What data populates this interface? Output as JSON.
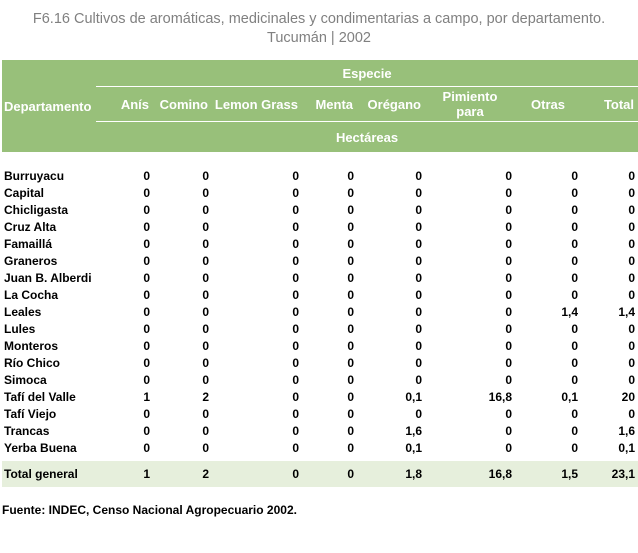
{
  "title": {
    "line1": "F6.16 Cultivos de aromáticas, medicinales y condimentarias a campo, por departamento.",
    "line2": "Tucumán | 2002"
  },
  "header": {
    "departamento": "Departamento",
    "especie": "Especie",
    "hectareas": "Hectáreas",
    "columns": [
      "Anís",
      "Comino",
      "Lemon Grass",
      "Menta",
      "Orégano",
      "Pimiento para",
      "Otras",
      "Total"
    ]
  },
  "rows": [
    {
      "name": "Burruyacu",
      "values": [
        "0",
        "0",
        "0",
        "0",
        "0",
        "0",
        "0",
        "0"
      ]
    },
    {
      "name": "Capital",
      "values": [
        "0",
        "0",
        "0",
        "0",
        "0",
        "0",
        "0",
        "0"
      ]
    },
    {
      "name": "Chicligasta",
      "values": [
        "0",
        "0",
        "0",
        "0",
        "0",
        "0",
        "0",
        "0"
      ]
    },
    {
      "name": "Cruz Alta",
      "values": [
        "0",
        "0",
        "0",
        "0",
        "0",
        "0",
        "0",
        "0"
      ]
    },
    {
      "name": "Famaillá",
      "values": [
        "0",
        "0",
        "0",
        "0",
        "0",
        "0",
        "0",
        "0"
      ]
    },
    {
      "name": "Graneros",
      "values": [
        "0",
        "0",
        "0",
        "0",
        "0",
        "0",
        "0",
        "0"
      ]
    },
    {
      "name": "Juan B. Alberdi",
      "values": [
        "0",
        "0",
        "0",
        "0",
        "0",
        "0",
        "0",
        "0"
      ]
    },
    {
      "name": "La Cocha",
      "values": [
        "0",
        "0",
        "0",
        "0",
        "0",
        "0",
        "0",
        "0"
      ]
    },
    {
      "name": "Leales",
      "values": [
        "0",
        "0",
        "0",
        "0",
        "0",
        "0",
        "1,4",
        "1,4"
      ]
    },
    {
      "name": "Lules",
      "values": [
        "0",
        "0",
        "0",
        "0",
        "0",
        "0",
        "0",
        "0"
      ]
    },
    {
      "name": "Monteros",
      "values": [
        "0",
        "0",
        "0",
        "0",
        "0",
        "0",
        "0",
        "0"
      ]
    },
    {
      "name": "Río Chico",
      "values": [
        "0",
        "0",
        "0",
        "0",
        "0",
        "0",
        "0",
        "0"
      ]
    },
    {
      "name": "Simoca",
      "values": [
        "0",
        "0",
        "0",
        "0",
        "0",
        "0",
        "0",
        "0"
      ]
    },
    {
      "name": "Tafí del Valle",
      "values": [
        "1",
        "2",
        "0",
        "0",
        "0,1",
        "16,8",
        "0,1",
        "20"
      ]
    },
    {
      "name": "Tafí Viejo",
      "values": [
        "0",
        "0",
        "0",
        "0",
        "0",
        "0",
        "0",
        "0"
      ]
    },
    {
      "name": "Trancas",
      "values": [
        "0",
        "0",
        "0",
        "0",
        "1,6",
        "0",
        "0",
        "1,6"
      ]
    },
    {
      "name": "Yerba Buena",
      "values": [
        "0",
        "0",
        "0",
        "0",
        "0,1",
        "0",
        "0",
        "0,1"
      ]
    }
  ],
  "total": {
    "name": "Total general",
    "values": [
      "1",
      "2",
      "0",
      "0",
      "1,8",
      "16,8",
      "1,5",
      "23,1"
    ]
  },
  "fuente": "Fuente: INDEC, Censo Nacional Agropecuario 2002.",
  "colors": {
    "header_bg": "#98c07a",
    "total_bg": "#e6efdc",
    "title": "#808080"
  }
}
